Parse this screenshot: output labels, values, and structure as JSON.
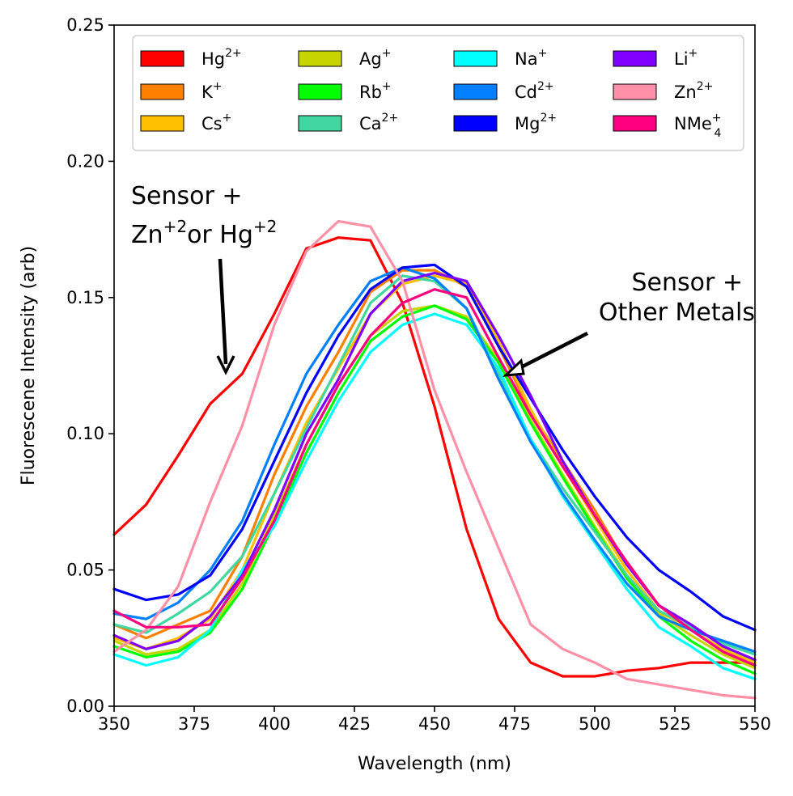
{
  "chart_data": {
    "type": "line",
    "title": "",
    "xlabel": "Wavelength (nm)",
    "ylabel": "Fluorescene Intensity (arb)",
    "xlim": [
      350,
      550
    ],
    "ylim": [
      0,
      0.25
    ],
    "xticks": [
      350,
      375,
      400,
      425,
      450,
      475,
      500,
      525,
      550
    ],
    "yticks": [
      0,
      0.05,
      0.1,
      0.15,
      0.2,
      0.25
    ],
    "xtick_labels": [
      "350",
      "375",
      "400",
      "425",
      "450",
      "475",
      "500",
      "525",
      "550"
    ],
    "ytick_labels": [
      "0.00",
      "0.05",
      "0.10",
      "0.15",
      "0.20",
      "0.25"
    ],
    "grid": false,
    "legend_position": "top",
    "legend_columns": 4,
    "x": [
      350,
      360,
      370,
      380,
      390,
      400,
      410,
      420,
      430,
      440,
      450,
      460,
      470,
      480,
      490,
      500,
      510,
      520,
      530,
      540,
      550
    ],
    "series": [
      {
        "name": "Hg2+",
        "base": "Hg",
        "sup": "2+",
        "sub": "",
        "color": "#ff0000",
        "values": [
          0.063,
          0.074,
          0.092,
          0.111,
          0.122,
          0.144,
          0.168,
          0.172,
          0.171,
          0.148,
          0.11,
          0.065,
          0.032,
          0.016,
          0.011,
          0.011,
          0.013,
          0.014,
          0.016,
          0.016,
          0.016
        ]
      },
      {
        "name": "K+",
        "base": "K",
        "sup": "+",
        "sub": "",
        "color": "#ff8000",
        "values": [
          0.03,
          0.025,
          0.03,
          0.035,
          0.055,
          0.085,
          0.11,
          0.13,
          0.152,
          0.16,
          0.16,
          0.154,
          0.132,
          0.108,
          0.09,
          0.072,
          0.052,
          0.037,
          0.03,
          0.022,
          0.017
        ]
      },
      {
        "name": "Cs+",
        "base": "Cs",
        "sup": "+",
        "sub": "",
        "color": "#ffc000",
        "values": [
          0.025,
          0.021,
          0.025,
          0.032,
          0.05,
          0.078,
          0.104,
          0.124,
          0.144,
          0.155,
          0.158,
          0.155,
          0.134,
          0.109,
          0.088,
          0.069,
          0.05,
          0.035,
          0.028,
          0.021,
          0.016
        ]
      },
      {
        "name": "Ag+",
        "base": "Ag",
        "sup": "+",
        "sub": "",
        "color": "#c8d400",
        "values": [
          0.024,
          0.019,
          0.021,
          0.028,
          0.045,
          0.07,
          0.096,
          0.118,
          0.136,
          0.145,
          0.147,
          0.143,
          0.127,
          0.105,
          0.085,
          0.066,
          0.048,
          0.034,
          0.026,
          0.019,
          0.014
        ]
      },
      {
        "name": "Rb+",
        "base": "Rb",
        "sup": "+",
        "sub": "",
        "color": "#00ff00",
        "values": [
          0.022,
          0.018,
          0.02,
          0.027,
          0.043,
          0.067,
          0.093,
          0.115,
          0.134,
          0.143,
          0.147,
          0.142,
          0.126,
          0.104,
          0.084,
          0.065,
          0.047,
          0.033,
          0.024,
          0.017,
          0.012
        ]
      },
      {
        "name": "Ca2+",
        "base": "Ca",
        "sup": "2+",
        "sub": "",
        "color": "#40d8a0",
        "values": [
          0.03,
          0.027,
          0.034,
          0.042,
          0.055,
          0.078,
          0.102,
          0.125,
          0.148,
          0.158,
          0.156,
          0.146,
          0.122,
          0.098,
          0.08,
          0.064,
          0.048,
          0.035,
          0.029,
          0.023,
          0.019
        ]
      },
      {
        "name": "Na+",
        "base": "Na",
        "sup": "+",
        "sub": "",
        "color": "#00ffff",
        "values": [
          0.019,
          0.015,
          0.018,
          0.028,
          0.05,
          0.066,
          0.09,
          0.112,
          0.13,
          0.14,
          0.144,
          0.14,
          0.124,
          0.098,
          0.077,
          0.06,
          0.043,
          0.029,
          0.022,
          0.014,
          0.01
        ]
      },
      {
        "name": "Cd2+",
        "base": "Cd",
        "sup": "2+",
        "sub": "",
        "color": "#0080ff",
        "values": [
          0.034,
          0.032,
          0.038,
          0.05,
          0.068,
          0.096,
          0.122,
          0.14,
          0.156,
          0.161,
          0.157,
          0.146,
          0.12,
          0.097,
          0.078,
          0.061,
          0.045,
          0.033,
          0.028,
          0.024,
          0.02
        ]
      },
      {
        "name": "Mg2+",
        "base": "Mg",
        "sup": "2+",
        "sub": "",
        "color": "#0000ff",
        "values": [
          0.043,
          0.039,
          0.041,
          0.048,
          0.065,
          0.09,
          0.115,
          0.136,
          0.153,
          0.161,
          0.162,
          0.154,
          0.132,
          0.113,
          0.094,
          0.077,
          0.062,
          0.05,
          0.042,
          0.033,
          0.028
        ]
      },
      {
        "name": "Li+",
        "base": "Li",
        "sup": "+",
        "sub": "",
        "color": "#8000ff",
        "values": [
          0.026,
          0.021,
          0.024,
          0.033,
          0.048,
          0.072,
          0.1,
          0.12,
          0.144,
          0.156,
          0.159,
          0.156,
          0.136,
          0.114,
          0.09,
          0.07,
          0.052,
          0.037,
          0.03,
          0.022,
          0.017
        ]
      },
      {
        "name": "Zn2+",
        "base": "Zn",
        "sup": "2+",
        "sub": "",
        "color": "#ff90a8",
        "values": [
          0.02,
          0.028,
          0.044,
          0.075,
          0.103,
          0.14,
          0.167,
          0.178,
          0.176,
          0.156,
          0.116,
          0.086,
          0.058,
          0.03,
          0.021,
          0.016,
          0.01,
          0.008,
          0.006,
          0.004,
          0.003
        ]
      },
      {
        "name": "NMe4+",
        "base": "NMe",
        "sup": "+",
        "sub": "4",
        "color": "#ff0080",
        "values": [
          0.035,
          0.029,
          0.029,
          0.03,
          0.047,
          0.068,
          0.096,
          0.118,
          0.136,
          0.148,
          0.153,
          0.15,
          0.128,
          0.107,
          0.088,
          0.07,
          0.053,
          0.037,
          0.028,
          0.02,
          0.015
        ]
      }
    ],
    "annotations": [
      {
        "id": "zn-hg",
        "lines": [
          "Sensor +"
        ],
        "rich_base1": "Zn",
        "rich_sup1": "+2",
        "rich_mid": "or Hg",
        "rich_sup2": "+2"
      },
      {
        "id": "other",
        "lines": [
          "Sensor +",
          "Other Metals"
        ]
      }
    ]
  }
}
